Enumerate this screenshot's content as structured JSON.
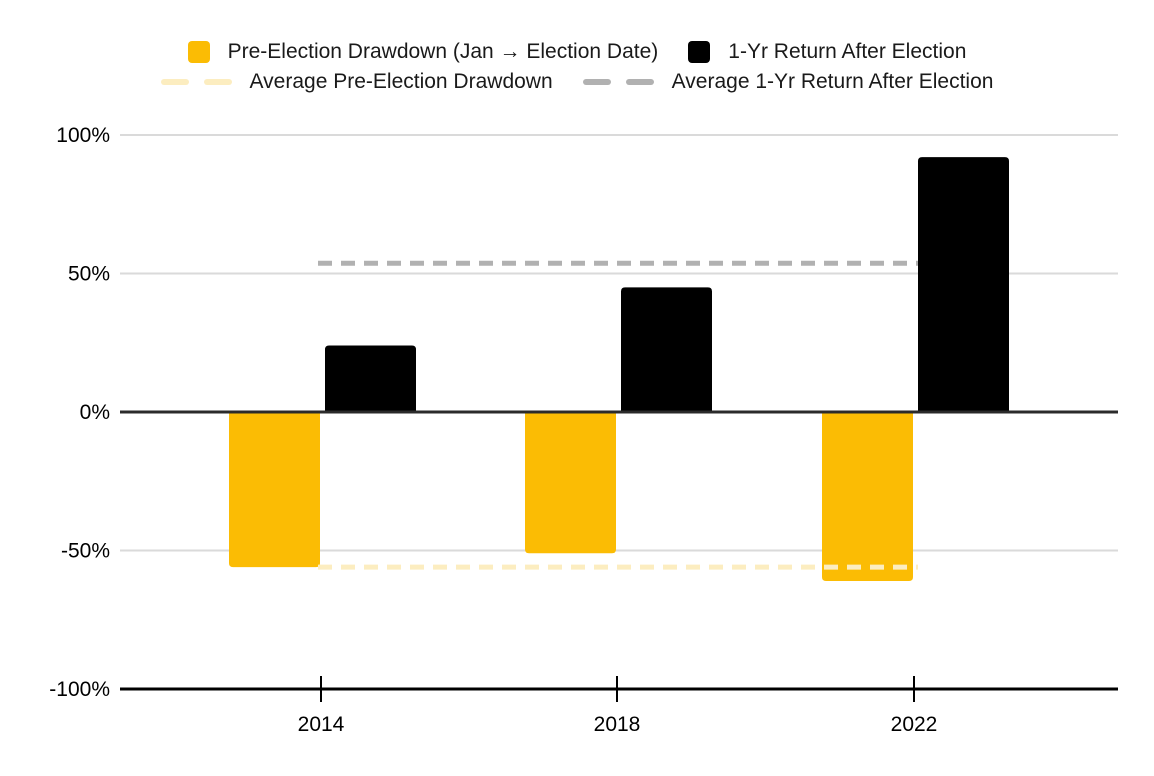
{
  "chart_data": {
    "type": "bar",
    "categories": [
      "2014",
      "2018",
      "2022"
    ],
    "series": [
      {
        "name": "Pre-Election Drawdown (Jan → Election Date)",
        "values": [
          -56,
          -51,
          -61
        ],
        "color": "#FBBC04"
      },
      {
        "name": "1-Yr Return After Election",
        "values": [
          24,
          45,
          92
        ],
        "color": "#000000"
      }
    ],
    "average_lines": [
      {
        "name": "Average Pre-Election Drawdown",
        "value": -56,
        "color": "#FCEDC0",
        "style": "dashed"
      },
      {
        "name": "Average 1-Yr Return After Election",
        "value": 53.7,
        "color": "#B1B1B1",
        "style": "dashed"
      }
    ],
    "yticks": [
      {
        "value": 100,
        "label": "100%"
      },
      {
        "value": 50,
        "label": "50%"
      },
      {
        "value": 0,
        "label": "0%"
      },
      {
        "value": -50,
        "label": "-50%"
      },
      {
        "value": -100,
        "label": "-100%"
      }
    ],
    "ylim": [
      -100,
      100
    ],
    "xlabel": "",
    "ylabel": "",
    "grid": "horizontal",
    "legend_position": "top",
    "colors": {
      "gridline": "#DADADA",
      "zero_line": "#2B2B2B",
      "axis_line": "#000000",
      "text": "#000000"
    }
  }
}
